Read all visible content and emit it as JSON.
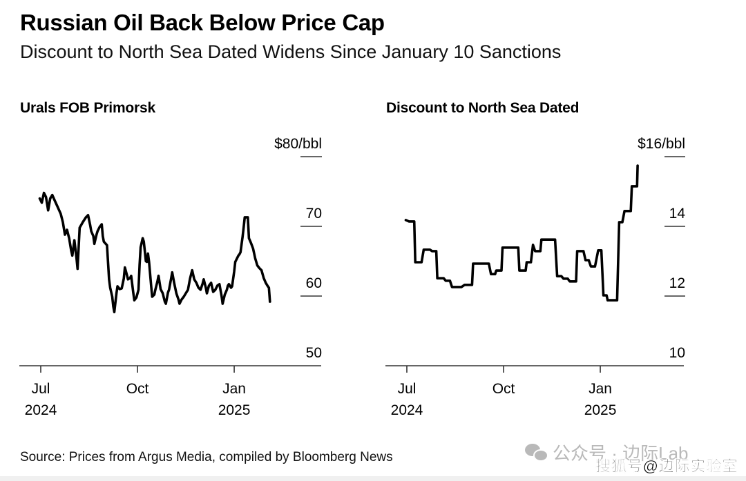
{
  "header": {
    "title": "Russian Oil Back Below Price Cap",
    "subtitle": "Discount to North Sea Dated Widens Since January 10 Sanctions"
  },
  "footer": {
    "source": "Source: Prices from Argus Media, compiled by Bloomberg News",
    "watermark_line1": "公众号 · 边际Lab",
    "watermark_line2": "搜狐号@边际实验室",
    "watermark_icon": "wechat-icon"
  },
  "colors": {
    "line": "#000000",
    "axis": "#333333",
    "text": "#000000",
    "watermark": "#b9b9b9"
  },
  "chart_data": [
    {
      "type": "line",
      "title": "Urals FOB Primorsk",
      "xlabel": "",
      "ylabel": "$/bbl",
      "x_unit": "days since 2024-07-01",
      "ylim": [
        50,
        80
      ],
      "yticks": [
        {
          "value": 80,
          "label": "$80/bbl"
        },
        {
          "value": 70,
          "label": "70"
        },
        {
          "value": 60,
          "label": "60"
        },
        {
          "value": 50,
          "label": "50"
        }
      ],
      "xlim_days": [
        -20,
        267
      ],
      "xticks": [
        {
          "day": 0,
          "label": "Jul",
          "sublabel": "2024"
        },
        {
          "day": 92,
          "label": "Oct",
          "sublabel": ""
        },
        {
          "day": 184,
          "label": "Jan",
          "sublabel": "2025"
        }
      ],
      "grid": false,
      "series": [
        {
          "name": "Urals FOB Primorsk",
          "points": [
            [
              -1,
              74.0
            ],
            [
              1,
              73.4
            ],
            [
              3,
              74.8
            ],
            [
              5,
              74.2
            ],
            [
              7,
              72.3
            ],
            [
              9,
              74.0
            ],
            [
              11,
              74.5
            ],
            [
              13,
              73.8
            ],
            [
              16,
              72.8
            ],
            [
              19,
              71.8
            ],
            [
              21,
              70.6
            ],
            [
              23,
              68.8
            ],
            [
              25,
              69.5
            ],
            [
              27,
              68.3
            ],
            [
              29,
              66.5
            ],
            [
              30,
              65.8
            ],
            [
              32,
              68.0
            ],
            [
              34,
              65.5
            ],
            [
              35,
              63.9
            ],
            [
              37,
              69.8
            ],
            [
              40,
              70.6
            ],
            [
              43,
              71.3
            ],
            [
              45,
              71.6
            ],
            [
              47,
              70.2
            ],
            [
              48,
              69.3
            ],
            [
              50,
              68.6
            ],
            [
              51,
              67.5
            ],
            [
              53,
              68.8
            ],
            [
              54,
              69.3
            ],
            [
              56,
              69.9
            ],
            [
              58,
              70.3
            ],
            [
              59,
              68.6
            ],
            [
              60,
              67.8
            ],
            [
              63,
              67.3
            ],
            [
              65,
              62.4
            ],
            [
              66,
              61.2
            ],
            [
              68,
              59.9
            ],
            [
              69,
              58.5
            ],
            [
              70,
              57.7
            ],
            [
              72,
              60.4
            ],
            [
              73,
              61.4
            ],
            [
              75,
              61.0
            ],
            [
              77,
              61.1
            ],
            [
              79,
              62.5
            ],
            [
              80,
              64.1
            ],
            [
              82,
              63.0
            ],
            [
              83,
              62.4
            ],
            [
              85,
              62.6
            ],
            [
              86,
              62.9
            ],
            [
              88,
              60.5
            ],
            [
              89,
              59.4
            ],
            [
              91,
              59.8
            ],
            [
              93,
              60.9
            ],
            [
              94,
              64.5
            ],
            [
              95,
              67.0
            ],
            [
              97,
              68.3
            ],
            [
              98,
              67.8
            ],
            [
              100,
              65.0
            ],
            [
              101,
              64.9
            ],
            [
              102,
              66.1
            ],
            [
              103,
              64.9
            ],
            [
              105,
              61.5
            ],
            [
              106,
              59.9
            ],
            [
              108,
              60.2
            ],
            [
              109,
              60.9
            ],
            [
              111,
              62.1
            ],
            [
              112,
              62.9
            ],
            [
              114,
              61.0
            ],
            [
              116,
              60.4
            ],
            [
              118,
              59.2
            ],
            [
              119,
              58.9
            ],
            [
              121,
              60.5
            ],
            [
              122,
              60.9
            ],
            [
              124,
              62.5
            ],
            [
              125,
              63.4
            ],
            [
              127,
              61.8
            ],
            [
              129,
              60.4
            ],
            [
              131,
              59.5
            ],
            [
              132,
              58.9
            ],
            [
              134,
              59.5
            ],
            [
              136,
              59.9
            ],
            [
              138,
              60.4
            ],
            [
              140,
              60.9
            ],
            [
              142,
              62.5
            ],
            [
              144,
              63.7
            ],
            [
              146,
              62.4
            ],
            [
              148,
              61.9
            ],
            [
              150,
              61.2
            ],
            [
              152,
              60.9
            ],
            [
              154,
              61.8
            ],
            [
              155,
              62.4
            ],
            [
              157,
              61.2
            ],
            [
              158,
              60.4
            ],
            [
              160,
              61.5
            ],
            [
              162,
              61.9
            ],
            [
              164,
              60.6
            ],
            [
              166,
              60.9
            ],
            [
              168,
              61.5
            ],
            [
              170,
              61.7
            ],
            [
              172,
              60.0
            ],
            [
              173,
              58.9
            ],
            [
              175,
              60.2
            ],
            [
              177,
              60.9
            ],
            [
              178,
              61.5
            ],
            [
              179,
              61.7
            ],
            [
              181,
              61.2
            ],
            [
              182,
              61.4
            ],
            [
              184,
              63.5
            ],
            [
              185,
              64.9
            ],
            [
              187,
              65.5
            ],
            [
              188,
              65.8
            ],
            [
              189,
              66.0
            ],
            [
              190,
              66.3
            ],
            [
              192,
              68.5
            ],
            [
              193,
              69.8
            ],
            [
              194,
              71.3
            ],
            [
              196,
              71.3
            ],
            [
              197,
              71.3
            ],
            [
              198,
              68.3
            ],
            [
              200,
              67.6
            ],
            [
              202,
              66.8
            ],
            [
              204,
              65.4
            ],
            [
              206,
              64.4
            ],
            [
              208,
              64.0
            ],
            [
              210,
              63.7
            ],
            [
              212,
              62.6
            ],
            [
              214,
              61.9
            ],
            [
              216,
              61.4
            ],
            [
              217,
              61.2
            ],
            [
              218,
              59.2
            ]
          ]
        }
      ]
    },
    {
      "type": "line",
      "title": "Discount to North Sea Dated",
      "xlabel": "",
      "ylabel": "$/bbl",
      "x_unit": "days since 2024-07-01",
      "ylim": [
        10,
        16
      ],
      "yticks": [
        {
          "value": 16,
          "label": "$16/bbl"
        },
        {
          "value": 14,
          "label": "14"
        },
        {
          "value": 12,
          "label": "12"
        },
        {
          "value": 10,
          "label": "10"
        }
      ],
      "xlim_days": [
        -20,
        264
      ],
      "xticks": [
        {
          "day": 0,
          "label": "Jul",
          "sublabel": "2024"
        },
        {
          "day": 92,
          "label": "Oct",
          "sublabel": ""
        },
        {
          "day": 184,
          "label": "Jan",
          "sublabel": "2025"
        }
      ],
      "grid": false,
      "series": [
        {
          "name": "Discount to North Sea Dated",
          "points": [
            [
              -1,
              14.18
            ],
            [
              2,
              14.14
            ],
            [
              7,
              14.14
            ],
            [
              8,
              12.97
            ],
            [
              14,
              12.97
            ],
            [
              16,
              13.33
            ],
            [
              22,
              13.33
            ],
            [
              24,
              13.29
            ],
            [
              28,
              13.29
            ],
            [
              29,
              12.51
            ],
            [
              35,
              12.51
            ],
            [
              37,
              12.44
            ],
            [
              41,
              12.44
            ],
            [
              43,
              12.26
            ],
            [
              52,
              12.26
            ],
            [
              55,
              12.32
            ],
            [
              62,
              12.32
            ],
            [
              63,
              12.93
            ],
            [
              78,
              12.93
            ],
            [
              80,
              12.63
            ],
            [
              84,
              12.63
            ],
            [
              85,
              12.73
            ],
            [
              90,
              12.73
            ],
            [
              91,
              13.39
            ],
            [
              106,
              13.39
            ],
            [
              107,
              12.73
            ],
            [
              113,
              12.73
            ],
            [
              114,
              12.97
            ],
            [
              118,
              12.97
            ],
            [
              120,
              13.47
            ],
            [
              122,
              13.29
            ],
            [
              127,
              13.29
            ],
            [
              128,
              13.62
            ],
            [
              141,
              13.62
            ],
            [
              143,
              12.57
            ],
            [
              147,
              12.57
            ],
            [
              149,
              12.5
            ],
            [
              153,
              12.5
            ],
            [
              155,
              12.42
            ],
            [
              161,
              12.42
            ],
            [
              162,
              13.29
            ],
            [
              168,
              13.29
            ],
            [
              170,
              13.03
            ],
            [
              173,
              13.03
            ],
            [
              175,
              12.85
            ],
            [
              179,
              12.85
            ],
            [
              182,
              13.31
            ],
            [
              185,
              13.31
            ],
            [
              187,
              12.02
            ],
            [
              190,
              12.02
            ],
            [
              191,
              11.88
            ],
            [
              200,
              11.88
            ],
            [
              202,
              14.12
            ],
            [
              205,
              14.12
            ],
            [
              207,
              14.44
            ],
            [
              213,
              14.44
            ],
            [
              214,
              15.15
            ],
            [
              219,
              15.15
            ],
            [
              219.5,
              15.74
            ]
          ]
        }
      ]
    }
  ]
}
